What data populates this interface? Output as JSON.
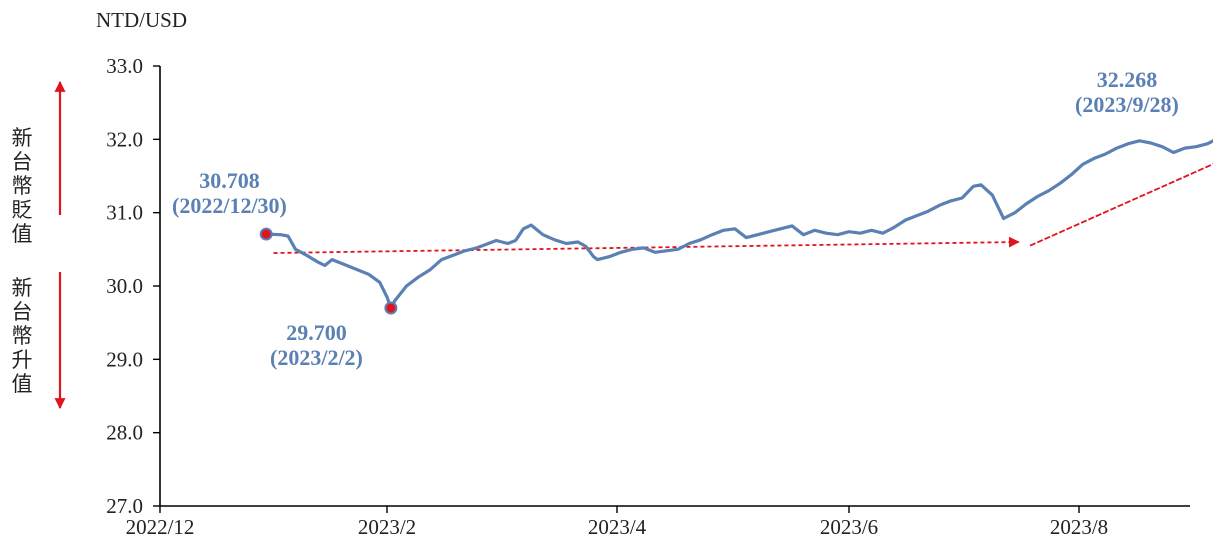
{
  "chart_data": {
    "type": "line",
    "ylabel": "NTD/USD",
    "ylim": [
      27.0,
      33.0
    ],
    "yticks": [
      "27.0",
      "28.0",
      "29.0",
      "30.0",
      "31.0",
      "32.0",
      "33.0"
    ],
    "xticks": [
      "2022/12",
      "2023/2",
      "2023/4",
      "2023/6",
      "2023/8"
    ],
    "xrange": [
      "2022/12/01",
      "2023/10/01"
    ],
    "series": [
      {
        "color": "#5b80b4",
        "points": [
          [
            "2022/12/30",
            30.708
          ],
          [
            "2023/01/03",
            30.7
          ],
          [
            "2023/01/05",
            30.68
          ],
          [
            "2023/01/07",
            30.5
          ],
          [
            "2023/01/10",
            30.42
          ],
          [
            "2023/01/13",
            30.33
          ],
          [
            "2023/01/15",
            30.28
          ],
          [
            "2023/01/17",
            30.36
          ],
          [
            "2023/01/20",
            30.3
          ],
          [
            "2023/01/24",
            30.22
          ],
          [
            "2023/01/27",
            30.16
          ],
          [
            "2023/01/30",
            30.05
          ],
          [
            "2023/02/01",
            29.85
          ],
          [
            "2023/02/02",
            29.7
          ],
          [
            "2023/02/03",
            29.8
          ],
          [
            "2023/02/06",
            30.0
          ],
          [
            "2023/02/09",
            30.12
          ],
          [
            "2023/02/12",
            30.22
          ],
          [
            "2023/02/15",
            30.36
          ],
          [
            "2023/02/18",
            30.42
          ],
          [
            "2023/02/21",
            30.48
          ],
          [
            "2023/02/24",
            30.52
          ],
          [
            "2023/02/27",
            30.58
          ],
          [
            "2023/03/01",
            30.62
          ],
          [
            "2023/03/04",
            30.58
          ],
          [
            "2023/03/06",
            30.62
          ],
          [
            "2023/03/08",
            30.78
          ],
          [
            "2023/03/10",
            30.83
          ],
          [
            "2023/03/13",
            30.7
          ],
          [
            "2023/03/16",
            30.63
          ],
          [
            "2023/03/19",
            30.58
          ],
          [
            "2023/03/22",
            30.6
          ],
          [
            "2023/03/24",
            30.54
          ],
          [
            "2023/03/26",
            30.4
          ],
          [
            "2023/03/27",
            30.36
          ],
          [
            "2023/03/30",
            30.4
          ],
          [
            "2023/04/02",
            30.46
          ],
          [
            "2023/04/05",
            30.5
          ],
          [
            "2023/04/08",
            30.52
          ],
          [
            "2023/04/11",
            30.46
          ],
          [
            "2023/04/14",
            30.48
          ],
          [
            "2023/04/17",
            30.5
          ],
          [
            "2023/04/20",
            30.58
          ],
          [
            "2023/04/23",
            30.63
          ],
          [
            "2023/04/26",
            30.7
          ],
          [
            "2023/04/29",
            30.76
          ],
          [
            "2023/05/02",
            30.78
          ],
          [
            "2023/05/05",
            30.66
          ],
          [
            "2023/05/08",
            30.7
          ],
          [
            "2023/05/11",
            30.74
          ],
          [
            "2023/05/14",
            30.78
          ],
          [
            "2023/05/17",
            30.82
          ],
          [
            "2023/05/20",
            30.7
          ],
          [
            "2023/05/23",
            30.76
          ],
          [
            "2023/05/26",
            30.72
          ],
          [
            "2023/05/29",
            30.7
          ],
          [
            "2023/06/01",
            30.74
          ],
          [
            "2023/06/04",
            30.72
          ],
          [
            "2023/06/07",
            30.76
          ],
          [
            "2023/06/10",
            30.72
          ],
          [
            "2023/06/13",
            30.8
          ],
          [
            "2023/06/16",
            30.9
          ],
          [
            "2023/06/19",
            30.96
          ],
          [
            "2023/06/22",
            31.02
          ],
          [
            "2023/06/25",
            31.1
          ],
          [
            "2023/06/28",
            31.16
          ],
          [
            "2023/07/01",
            31.2
          ],
          [
            "2023/07/04",
            31.36
          ],
          [
            "2023/07/06",
            31.38
          ],
          [
            "2023/07/09",
            31.24
          ],
          [
            "2023/07/12",
            30.92
          ],
          [
            "2023/07/15",
            31.0
          ],
          [
            "2023/07/18",
            31.12
          ],
          [
            "2023/07/21",
            31.22
          ],
          [
            "2023/07/24",
            31.3
          ],
          [
            "2023/07/27",
            31.4
          ],
          [
            "2023/07/30",
            31.52
          ],
          [
            "2023/08/02",
            31.66
          ],
          [
            "2023/08/05",
            31.74
          ],
          [
            "2023/08/08",
            31.8
          ],
          [
            "2023/08/11",
            31.88
          ],
          [
            "2023/08/14",
            31.94
          ],
          [
            "2023/08/17",
            31.98
          ],
          [
            "2023/08/20",
            31.95
          ],
          [
            "2023/08/23",
            31.9
          ],
          [
            "2023/08/26",
            31.82
          ],
          [
            "2023/08/29",
            31.88
          ],
          [
            "2023/09/01",
            31.9
          ],
          [
            "2023/09/04",
            31.94
          ],
          [
            "2023/09/07",
            32.02
          ],
          [
            "2023/09/10",
            31.98
          ],
          [
            "2023/09/13",
            31.92
          ],
          [
            "2023/09/16",
            31.96
          ],
          [
            "2023/09/19",
            32.06
          ],
          [
            "2023/09/22",
            32.12
          ],
          [
            "2023/09/25",
            32.18
          ],
          [
            "2023/09/28",
            32.268
          ]
        ]
      }
    ],
    "highlights": [
      {
        "date": "2022/12/30",
        "value": 30.708,
        "value_text": "30.708",
        "date_text": "(2022/12/30)"
      },
      {
        "date": "2023/02/02",
        "value": 29.7,
        "value_text": "29.700",
        "date_text": "(2023/2/2)"
      },
      {
        "date": "2023/09/28",
        "value": 32.268,
        "value_text": "32.268",
        "date_text": "(2023/9/28)"
      }
    ],
    "trend_arrows": [
      {
        "from": [
          "2023/01/01",
          30.45
        ],
        "to": [
          "2023/07/16",
          30.6
        ]
      },
      {
        "from": [
          "2023/07/19",
          30.55
        ],
        "to": [
          "2023/09/28",
          32.18
        ]
      }
    ],
    "side_labels": {
      "depreciation": "新台幣貶值",
      "appreciation": "新台幣升值"
    },
    "colors": {
      "line": "#5b80b4",
      "marker": "#e0141e",
      "trend_arrow": "#e0141e",
      "annotation": "#5b80b4",
      "axis": "#000000"
    }
  }
}
